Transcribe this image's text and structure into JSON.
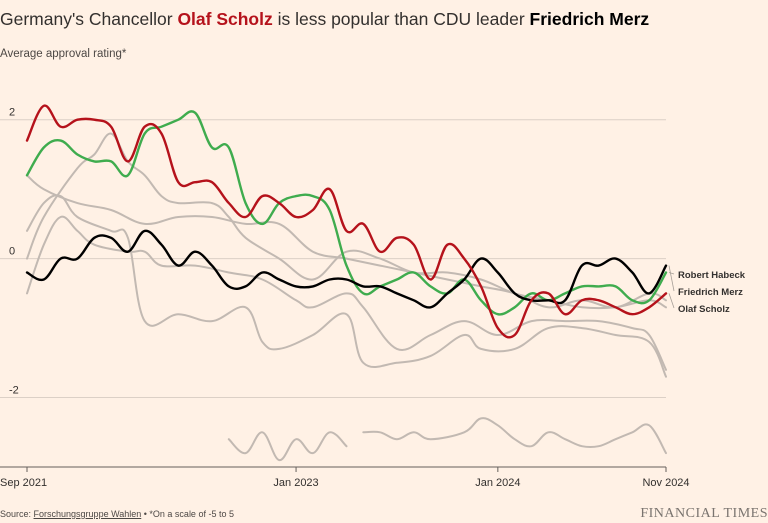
{
  "title": {
    "prefix": "Germany's Chancellor ",
    "scholz": "Olaf Scholz",
    "middle": " is less popular than CDU leader ",
    "merz": "Friedrich Merz"
  },
  "subtitle": "Average approval rating*",
  "source": {
    "prefix": "Source: ",
    "link": "Forschungsgruppe Wahlen",
    "suffix": " • *On a scale of -5 to 5"
  },
  "logo": "FINANCIAL TIMES",
  "colors": {
    "scholz": "#b5121b",
    "merz": "#000000",
    "habeck": "#3fac4e",
    "other": "#c2b9b2",
    "grid": "#dcd0c6",
    "axis": "#66605c",
    "text": "#33302e"
  },
  "chart_data": {
    "type": "line",
    "title": "",
    "xlabel": "",
    "ylabel": "Average approval rating*",
    "x_range": [
      "2021-09",
      "2024-11"
    ],
    "ylim": [
      -3.0,
      2.5
    ],
    "yticks": [
      {
        "value": 2,
        "label": "2"
      },
      {
        "value": 0,
        "label": "0"
      },
      {
        "value": -2,
        "label": "-2"
      }
    ],
    "xticks": [
      {
        "value": "2021-09",
        "label": "Sep 2021"
      },
      {
        "value": "2023-01",
        "label": "Jan 2023"
      },
      {
        "value": "2024-01",
        "label": "Jan 2024"
      },
      {
        "value": "2024-11",
        "label": "Nov 2024"
      }
    ],
    "grid": true,
    "legend": "direct labels at right end of lines",
    "series": [
      {
        "name": "",
        "role": "other",
        "points": [
          [
            "2021-09",
            1.2
          ],
          [
            "2021-10",
            1.0
          ],
          [
            "2021-12",
            0.8
          ],
          [
            "2022-02",
            0.7
          ],
          [
            "2022-04",
            0.5
          ],
          [
            "2022-06",
            0.6
          ],
          [
            "2022-08",
            0.6
          ],
          [
            "2022-10",
            0.5
          ],
          [
            "2022-12",
            0.5
          ],
          [
            "2023-02",
            0.1
          ],
          [
            "2023-04",
            0.0
          ],
          [
            "2023-06",
            -0.1
          ],
          [
            "2023-08",
            -0.2
          ],
          [
            "2023-10",
            -0.3
          ],
          [
            "2023-12",
            -0.4
          ],
          [
            "2024-02",
            -0.5
          ],
          [
            "2024-04",
            -0.7
          ],
          [
            "2024-06",
            -0.6
          ],
          [
            "2024-08",
            -0.7
          ],
          [
            "2024-10",
            -0.5
          ],
          [
            "2024-11",
            -0.6
          ]
        ]
      },
      {
        "name": "",
        "role": "other",
        "points": [
          [
            "2021-09",
            0.4
          ],
          [
            "2021-10",
            0.8
          ],
          [
            "2021-11",
            0.9
          ],
          [
            "2021-12",
            0.6
          ],
          [
            "2022-02",
            0.4
          ],
          [
            "2022-03",
            0.3
          ],
          [
            "2022-04",
            -0.9
          ],
          [
            "2022-06",
            -0.8
          ],
          [
            "2022-08",
            -0.9
          ],
          [
            "2022-10",
            -0.7
          ],
          [
            "2022-11",
            -1.2
          ],
          [
            "2022-12",
            -1.3
          ],
          [
            "2023-02",
            -1.1
          ],
          [
            "2023-04",
            -0.8
          ],
          [
            "2023-05",
            -1.5
          ],
          [
            "2023-07",
            -1.5
          ],
          [
            "2023-09",
            -1.4
          ],
          [
            "2023-11",
            -1.1
          ],
          [
            "2023-12",
            -1.3
          ],
          [
            "2024-02",
            -1.3
          ],
          [
            "2024-04",
            -1.0
          ],
          [
            "2024-06",
            -1.0
          ],
          [
            "2024-08",
            -1.1
          ],
          [
            "2024-10",
            -1.2
          ],
          [
            "2024-11",
            -1.7
          ]
        ]
      },
      {
        "name": "",
        "role": "other",
        "points": [
          [
            "2021-09",
            -0.5
          ],
          [
            "2021-10",
            0.2
          ],
          [
            "2021-11",
            0.6
          ],
          [
            "2021-12",
            0.4
          ],
          [
            "2022-01",
            0.2
          ],
          [
            "2022-03",
            0.1
          ],
          [
            "2022-04",
            0.1
          ],
          [
            "2022-05",
            -0.1
          ],
          [
            "2022-07",
            -0.1
          ],
          [
            "2022-09",
            -0.2
          ],
          [
            "2022-11",
            -0.3
          ],
          [
            "2023-01",
            -0.6
          ],
          [
            "2023-02",
            -0.7
          ],
          [
            "2023-04",
            -0.5
          ],
          [
            "2023-05",
            -0.7
          ],
          [
            "2023-07",
            -1.3
          ],
          [
            "2023-09",
            -1.1
          ],
          [
            "2023-11",
            -0.9
          ],
          [
            "2024-01",
            -1.1
          ],
          [
            "2024-03",
            -0.9
          ],
          [
            "2024-05",
            -0.9
          ],
          [
            "2024-07",
            -0.9
          ],
          [
            "2024-09",
            -1.0
          ],
          [
            "2024-10",
            -1.1
          ],
          [
            "2024-11",
            -1.6
          ]
        ]
      },
      {
        "name": "",
        "role": "other",
        "points": [
          [
            "2021-09",
            0.0
          ],
          [
            "2021-10",
            0.6
          ],
          [
            "2021-12",
            1.3
          ],
          [
            "2022-01",
            1.5
          ],
          [
            "2022-02",
            1.8
          ],
          [
            "2022-03",
            1.4
          ],
          [
            "2022-04",
            1.2
          ],
          [
            "2022-05",
            0.9
          ],
          [
            "2022-06",
            0.8
          ],
          [
            "2022-08",
            0.8
          ],
          [
            "2022-09",
            0.6
          ],
          [
            "2022-10",
            0.3
          ],
          [
            "2022-12",
            0.0
          ],
          [
            "2023-02",
            -0.3
          ],
          [
            "2023-04",
            0.1
          ],
          [
            "2023-06",
            0.0
          ],
          [
            "2023-08",
            -0.2
          ],
          [
            "2023-10",
            -0.2
          ],
          [
            "2023-12",
            -0.3
          ],
          [
            "2024-02",
            -0.5
          ],
          [
            "2024-04",
            -0.6
          ],
          [
            "2024-06",
            -0.7
          ],
          [
            "2024-08",
            -0.7
          ],
          [
            "2024-10",
            -0.6
          ],
          [
            "2024-11",
            -0.7
          ]
        ]
      },
      {
        "name": "",
        "role": "other",
        "points": [
          [
            "2022-09",
            -2.6
          ],
          [
            "2022-10",
            -2.8
          ],
          [
            "2022-11",
            -2.5
          ],
          [
            "2022-12",
            -2.9
          ],
          [
            "2023-01",
            -2.6
          ],
          [
            "2023-02",
            -2.8
          ],
          [
            "2023-03",
            -2.5
          ],
          [
            "2023-04",
            -2.7
          ]
        ]
      },
      {
        "name": "",
        "role": "other",
        "points": [
          [
            "2023-05",
            -2.5
          ],
          [
            "2023-06",
            -2.5
          ],
          [
            "2023-07",
            -2.6
          ],
          [
            "2023-08",
            -2.5
          ],
          [
            "2023-09",
            -2.6
          ],
          [
            "2023-11",
            -2.5
          ],
          [
            "2023-12",
            -2.3
          ],
          [
            "2024-01",
            -2.4
          ],
          [
            "2024-02",
            -2.6
          ],
          [
            "2024-03",
            -2.7
          ],
          [
            "2024-04",
            -2.5
          ],
          [
            "2024-05",
            -2.6
          ],
          [
            "2024-06",
            -2.7
          ],
          [
            "2024-07",
            -2.7
          ],
          [
            "2024-08",
            -2.6
          ],
          [
            "2024-09",
            -2.5
          ],
          [
            "2024-10",
            -2.4
          ],
          [
            "2024-11",
            -2.8
          ]
        ]
      },
      {
        "name": "Robert Habeck",
        "role": "habeck",
        "points": [
          [
            "2021-09",
            1.2
          ],
          [
            "2021-10",
            1.6
          ],
          [
            "2021-11",
            1.7
          ],
          [
            "2021-12",
            1.5
          ],
          [
            "2022-01",
            1.4
          ],
          [
            "2022-02",
            1.4
          ],
          [
            "2022-03",
            1.2
          ],
          [
            "2022-04",
            1.8
          ],
          [
            "2022-05",
            1.9
          ],
          [
            "2022-06",
            2.0
          ],
          [
            "2022-07",
            2.1
          ],
          [
            "2022-08",
            1.6
          ],
          [
            "2022-09",
            1.6
          ],
          [
            "2022-10",
            0.8
          ],
          [
            "2022-11",
            0.5
          ],
          [
            "2022-12",
            0.8
          ],
          [
            "2023-01",
            0.9
          ],
          [
            "2023-02",
            0.9
          ],
          [
            "2023-03",
            0.7
          ],
          [
            "2023-04",
            -0.1
          ],
          [
            "2023-05",
            -0.5
          ],
          [
            "2023-06",
            -0.4
          ],
          [
            "2023-07",
            -0.3
          ],
          [
            "2023-08",
            -0.2
          ],
          [
            "2023-09",
            -0.4
          ],
          [
            "2023-10",
            -0.5
          ],
          [
            "2023-11",
            -0.3
          ],
          [
            "2023-12",
            -0.6
          ],
          [
            "2024-01",
            -0.8
          ],
          [
            "2024-02",
            -0.7
          ],
          [
            "2024-03",
            -0.5
          ],
          [
            "2024-04",
            -0.6
          ],
          [
            "2024-05",
            -0.5
          ],
          [
            "2024-06",
            -0.4
          ],
          [
            "2024-07",
            -0.4
          ],
          [
            "2024-08",
            -0.4
          ],
          [
            "2024-09",
            -0.6
          ],
          [
            "2024-10",
            -0.6
          ],
          [
            "2024-11",
            -0.2
          ]
        ]
      },
      {
        "name": "Friedrich Merz",
        "role": "merz",
        "points": [
          [
            "2021-09",
            -0.2
          ],
          [
            "2021-10",
            -0.3
          ],
          [
            "2021-11",
            0.0
          ],
          [
            "2021-12",
            0.0
          ],
          [
            "2022-01",
            0.3
          ],
          [
            "2022-02",
            0.3
          ],
          [
            "2022-03",
            0.1
          ],
          [
            "2022-04",
            0.4
          ],
          [
            "2022-05",
            0.2
          ],
          [
            "2022-06",
            -0.1
          ],
          [
            "2022-07",
            0.1
          ],
          [
            "2022-08",
            -0.1
          ],
          [
            "2022-09",
            -0.4
          ],
          [
            "2022-10",
            -0.4
          ],
          [
            "2022-11",
            -0.2
          ],
          [
            "2022-12",
            -0.3
          ],
          [
            "2023-01",
            -0.4
          ],
          [
            "2023-02",
            -0.4
          ],
          [
            "2023-03",
            -0.3
          ],
          [
            "2023-04",
            -0.3
          ],
          [
            "2023-05",
            -0.4
          ],
          [
            "2023-06",
            -0.4
          ],
          [
            "2023-07",
            -0.5
          ],
          [
            "2023-08",
            -0.6
          ],
          [
            "2023-09",
            -0.7
          ],
          [
            "2023-10",
            -0.5
          ],
          [
            "2023-11",
            -0.3
          ],
          [
            "2023-12",
            0.0
          ],
          [
            "2024-01",
            -0.2
          ],
          [
            "2024-02",
            -0.5
          ],
          [
            "2024-03",
            -0.6
          ],
          [
            "2024-04",
            -0.6
          ],
          [
            "2024-05",
            -0.6
          ],
          [
            "2024-06",
            -0.1
          ],
          [
            "2024-07",
            -0.1
          ],
          [
            "2024-08",
            0.0
          ],
          [
            "2024-09",
            -0.2
          ],
          [
            "2024-10",
            -0.5
          ],
          [
            "2024-11",
            -0.1
          ]
        ]
      },
      {
        "name": "Olaf Scholz",
        "role": "scholz",
        "points": [
          [
            "2021-09",
            1.7
          ],
          [
            "2021-10",
            2.2
          ],
          [
            "2021-11",
            1.9
          ],
          [
            "2021-12",
            2.0
          ],
          [
            "2022-01",
            2.0
          ],
          [
            "2022-02",
            1.9
          ],
          [
            "2022-03",
            1.4
          ],
          [
            "2022-04",
            1.9
          ],
          [
            "2022-05",
            1.8
          ],
          [
            "2022-06",
            1.1
          ],
          [
            "2022-07",
            1.1
          ],
          [
            "2022-08",
            1.1
          ],
          [
            "2022-09",
            0.8
          ],
          [
            "2022-10",
            0.6
          ],
          [
            "2022-11",
            0.9
          ],
          [
            "2022-12",
            0.8
          ],
          [
            "2023-01",
            0.6
          ],
          [
            "2023-02",
            0.7
          ],
          [
            "2023-03",
            1.0
          ],
          [
            "2023-04",
            0.4
          ],
          [
            "2023-05",
            0.5
          ],
          [
            "2023-06",
            0.1
          ],
          [
            "2023-07",
            0.3
          ],
          [
            "2023-08",
            0.2
          ],
          [
            "2023-09",
            -0.3
          ],
          [
            "2023-10",
            0.2
          ],
          [
            "2023-11",
            0.0
          ],
          [
            "2023-12",
            -0.4
          ],
          [
            "2024-01",
            -1.0
          ],
          [
            "2024-02",
            -1.1
          ],
          [
            "2024-03",
            -0.6
          ],
          [
            "2024-04",
            -0.5
          ],
          [
            "2024-05",
            -0.8
          ],
          [
            "2024-06",
            -0.6
          ],
          [
            "2024-07",
            -0.6
          ],
          [
            "2024-08",
            -0.7
          ],
          [
            "2024-09",
            -0.8
          ],
          [
            "2024-10",
            -0.7
          ],
          [
            "2024-11",
            -0.5
          ]
        ]
      }
    ]
  }
}
